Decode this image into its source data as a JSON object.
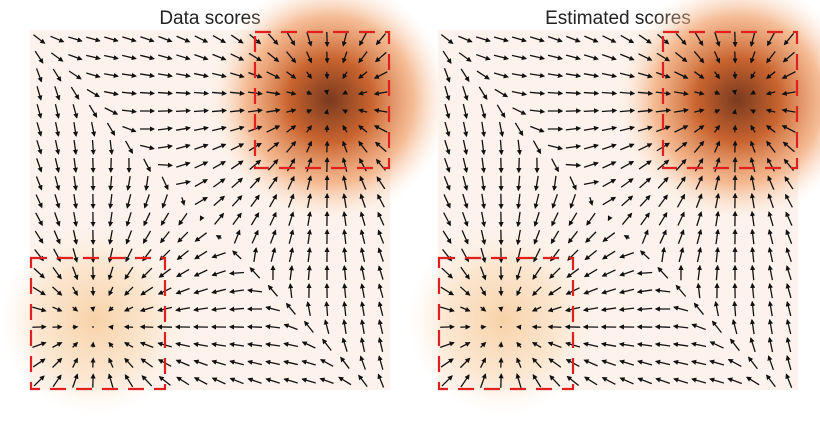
{
  "panels": [
    {
      "title": "Data scores"
    },
    {
      "title": "Estimated scores"
    }
  ]
}
